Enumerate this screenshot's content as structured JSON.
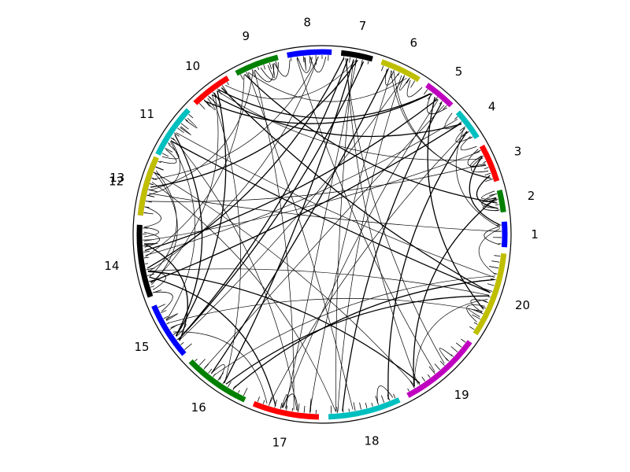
{
  "diagram": {
    "type": "chord-diagram",
    "segments": [
      {
        "label": "1",
        "color": "#0000ff"
      },
      {
        "label": "2",
        "color": "#008000"
      },
      {
        "label": "3",
        "color": "#ff0000"
      },
      {
        "label": "4",
        "color": "#00bfbf"
      },
      {
        "label": "5",
        "color": "#bf00bf"
      },
      {
        "label": "6",
        "color": "#bfbf00"
      },
      {
        "label": "7",
        "color": "#000000"
      },
      {
        "label": "8",
        "color": "#0000ff"
      },
      {
        "label": "9",
        "color": "#008000"
      },
      {
        "label": "10",
        "color": "#ff0000"
      },
      {
        "label": "11",
        "color": "#00bfbf"
      },
      {
        "label": "12",
        "color": "#bf00bf"
      },
      {
        "label": "13",
        "color": "#bfbf00"
      },
      {
        "label": "14",
        "color": "#000000"
      },
      {
        "label": "15",
        "color": "#0000ff"
      },
      {
        "label": "16",
        "color": "#008000"
      },
      {
        "label": "17",
        "color": "#ff0000"
      },
      {
        "label": "18",
        "color": "#00bfbf"
      },
      {
        "label": "19",
        "color": "#bf00bf"
      },
      {
        "label": "20",
        "color": "#bfbf00"
      }
    ],
    "link_color": "#000000"
  }
}
